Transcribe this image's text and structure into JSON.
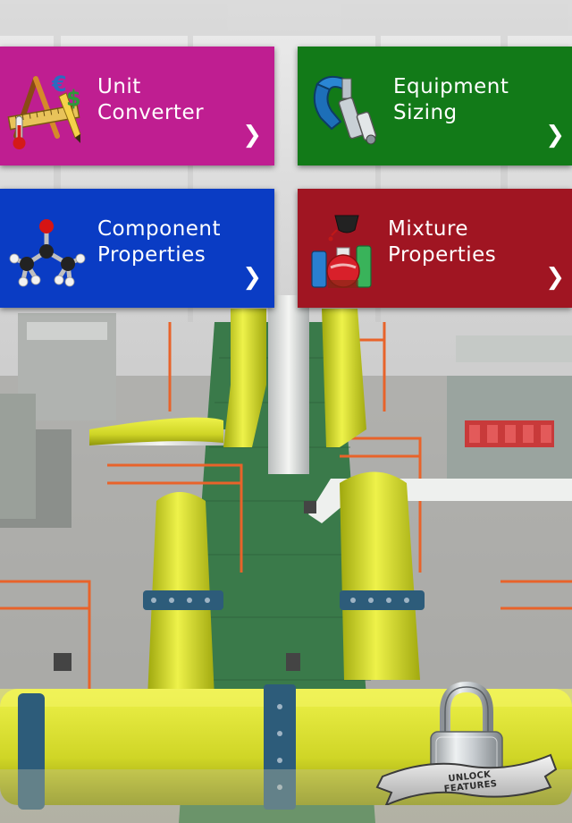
{
  "tiles": [
    {
      "line1": "Unit",
      "line2": "Converter",
      "icon": "ruler-pencil-currency-icon",
      "color": "#bf1e91"
    },
    {
      "line1": "Equipment",
      "line2": "Sizing",
      "icon": "caliper-clamp-icon",
      "color": "#127a18"
    },
    {
      "line1": "Component",
      "line2": "Properties",
      "icon": "molecule-icon",
      "color": "#0a3cc4"
    },
    {
      "line1": "Mixture",
      "line2": "Properties",
      "icon": "beaker-flask-icon",
      "color": "#a01522"
    }
  ],
  "chevron": "❯",
  "unlock": {
    "label": "UNLOCK FEATURES",
    "icon": "padlock-icon"
  }
}
